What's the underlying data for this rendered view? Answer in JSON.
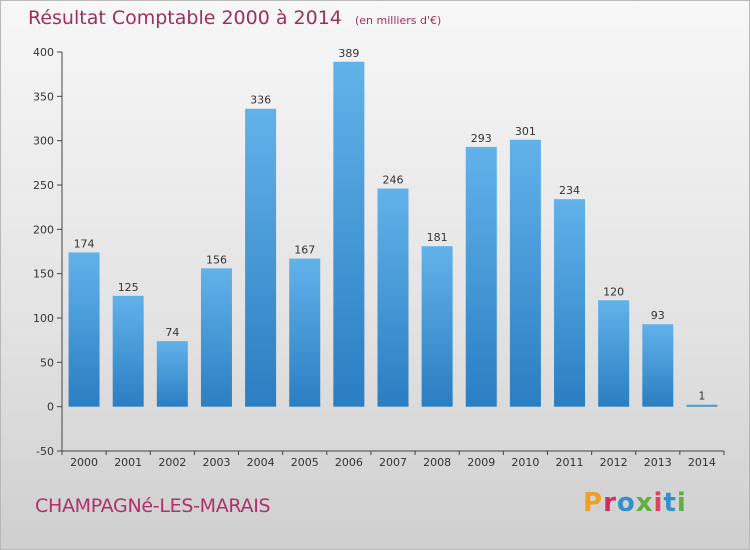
{
  "chart": {
    "title": "Résultat Comptable 2000 à 2014",
    "unit_note": "(en milliers d'€)",
    "commune": "CHAMPAGNé-LES-MARAIS",
    "brand": "Proxiti",
    "brand_colors": [
      "#f0a020",
      "#d03060",
      "#3090d0",
      "#60b040",
      "#e04060",
      "#3090d0",
      "#60b040"
    ],
    "bar_color_top": "#62b2ea",
    "bar_color_bottom": "#2a7ec2"
  },
  "chart_data": {
    "type": "bar",
    "title": "Résultat Comptable 2000 à 2014",
    "xlabel": "",
    "ylabel": "",
    "categories": [
      "2000",
      "2001",
      "2002",
      "2003",
      "2004",
      "2005",
      "2006",
      "2007",
      "2008",
      "2009",
      "2010",
      "2011",
      "2012",
      "2013",
      "2014"
    ],
    "values": [
      174,
      125,
      74,
      156,
      336,
      167,
      389,
      246,
      181,
      293,
      301,
      234,
      120,
      93,
      1
    ],
    "ylim": [
      -50,
      400
    ],
    "yticks": [
      -50,
      0,
      50,
      100,
      150,
      200,
      250,
      300,
      350,
      400
    ],
    "grid": false,
    "legend": "none"
  }
}
